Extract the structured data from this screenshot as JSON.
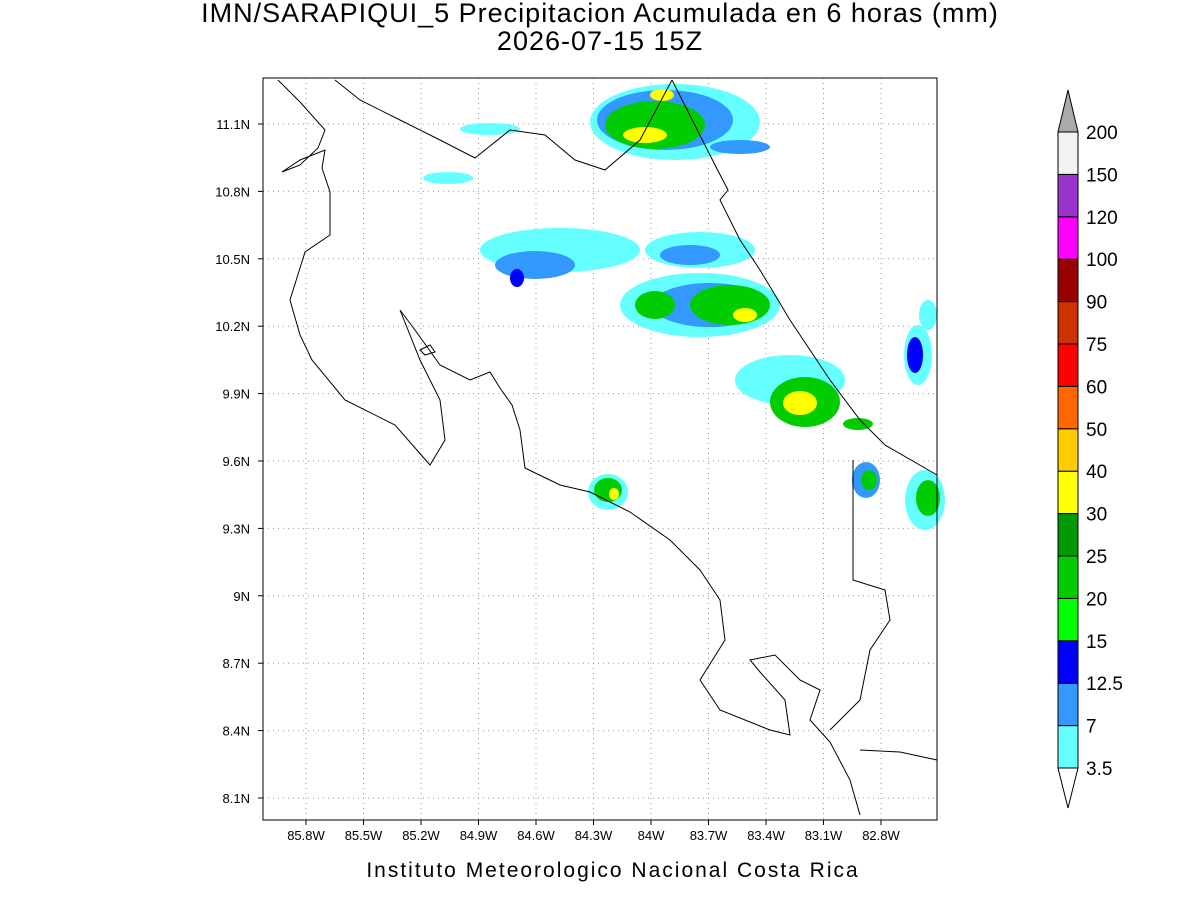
{
  "header": {
    "title": "IMN/SARAPIQUI_5 Precipitacion Acumulada en 6 horas (mm)",
    "subtitle": "2026-07-15 15Z"
  },
  "map": {
    "lon_labels": [
      "85.8W",
      "85.5W",
      "85.2W",
      "84.9W",
      "84.6W",
      "84.3W",
      "84W",
      "83.7W",
      "83.4W",
      "83.1W",
      "82.8W"
    ],
    "lat_labels": [
      "11.1N",
      "10.8N",
      "10.5N",
      "10.2N",
      "9.9N",
      "9.6N",
      "9.3N",
      "9N",
      "8.7N",
      "8.4N",
      "8.1N"
    ]
  },
  "colorbar": {
    "levels": [
      3.5,
      7,
      12.5,
      15,
      20,
      25,
      30,
      40,
      50,
      60,
      75,
      90,
      100,
      120,
      150,
      200
    ],
    "colors": [
      "#ffffff",
      "#66ffff",
      "#3399ff",
      "#0000ff",
      "#00ff00",
      "#00cc00",
      "#009900",
      "#ffff00",
      "#ffcc00",
      "#ff6600",
      "#ff0000",
      "#cc3300",
      "#990000",
      "#ff00ff",
      "#9933cc",
      "#f2f2f2",
      "#aaaaaa"
    ]
  },
  "footer": {
    "credit": "Instituto Meteorologico Nacional Costa Rica"
  }
}
